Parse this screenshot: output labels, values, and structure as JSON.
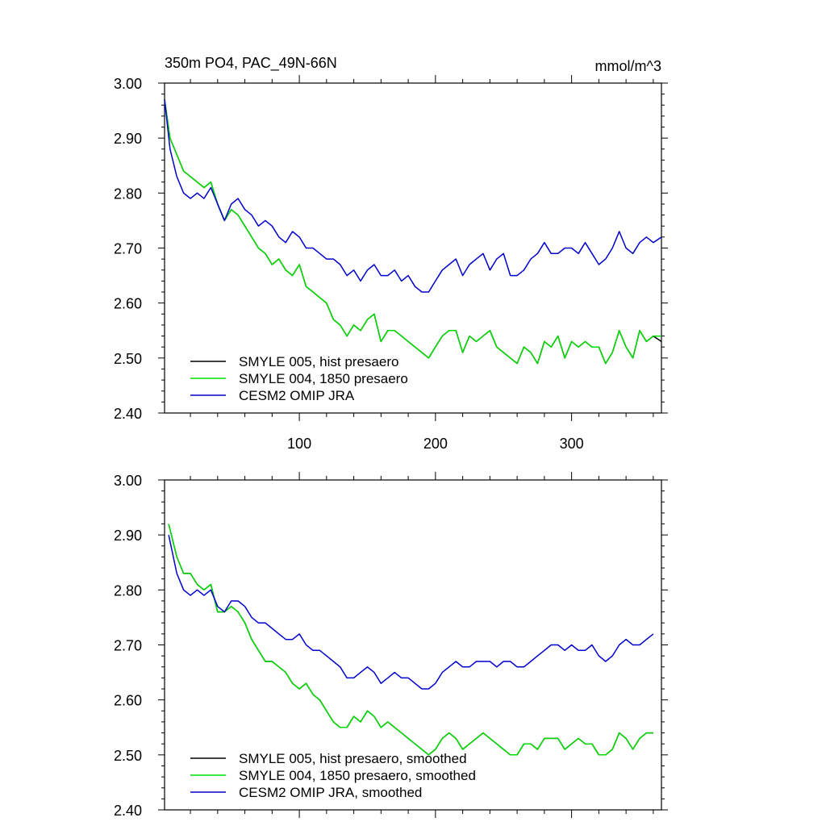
{
  "header": {
    "title": "350m PO4, PAC_49N-66N",
    "units": "mmol/m^3"
  },
  "colors": {
    "smyle005": "#000000",
    "smyle004": "#00dd00",
    "omip": "#0000cc",
    "axis": "#000000"
  },
  "chart_data": [
    {
      "type": "line",
      "title": "350m PO4, PAC_49N-66N",
      "units": "mmol/m^3",
      "xlim": [
        1,
        366
      ],
      "ylim": [
        2.4,
        3.0
      ],
      "x_ticks": [
        100,
        200,
        300
      ],
      "x_tick_labels": [
        "100",
        "200",
        "300"
      ],
      "y_ticks": [
        2.4,
        2.5,
        2.6,
        2.7,
        2.8,
        2.9,
        3.0
      ],
      "y_tick_labels": [
        "2.40",
        "2.50",
        "2.60",
        "2.70",
        "2.80",
        "2.90",
        "3.00"
      ],
      "grid": false,
      "legend_position": "bottom-left",
      "x": [
        1,
        5,
        10,
        15,
        20,
        25,
        30,
        35,
        40,
        45,
        50,
        55,
        60,
        65,
        70,
        75,
        80,
        85,
        90,
        95,
        100,
        105,
        110,
        115,
        120,
        125,
        130,
        135,
        140,
        145,
        150,
        155,
        160,
        165,
        170,
        175,
        180,
        185,
        190,
        195,
        200,
        205,
        210,
        215,
        220,
        225,
        230,
        235,
        240,
        245,
        250,
        255,
        260,
        265,
        270,
        275,
        280,
        285,
        290,
        295,
        300,
        305,
        310,
        315,
        320,
        325,
        330,
        335,
        340,
        345,
        350,
        355,
        360,
        366
      ],
      "series": [
        {
          "name": "SMYLE 005, hist presaero",
          "color": "#000000",
          "values": [
            2.97,
            2.9,
            2.87,
            2.84,
            2.83,
            2.82,
            2.81,
            2.82,
            2.78,
            2.75,
            2.77,
            2.76,
            2.74,
            2.72,
            2.7,
            2.69,
            2.67,
            2.68,
            2.66,
            2.65,
            2.67,
            2.63,
            2.62,
            2.61,
            2.6,
            2.57,
            2.56,
            2.54,
            2.56,
            2.55,
            2.57,
            2.58,
            2.53,
            2.55,
            2.55,
            2.54,
            2.53,
            2.52,
            2.51,
            2.5,
            2.52,
            2.54,
            2.55,
            2.55,
            2.51,
            2.54,
            2.53,
            2.54,
            2.55,
            2.52,
            2.51,
            2.5,
            2.49,
            2.52,
            2.51,
            2.49,
            2.53,
            2.52,
            2.54,
            2.5,
            2.53,
            2.52,
            2.53,
            2.52,
            2.52,
            2.49,
            2.51,
            2.55,
            2.52,
            2.5,
            2.55,
            2.53,
            2.54,
            2.53
          ]
        },
        {
          "name": "SMYLE 004, 1850 presaero",
          "color": "#00dd00",
          "values": [
            2.97,
            2.9,
            2.87,
            2.84,
            2.83,
            2.82,
            2.81,
            2.82,
            2.78,
            2.75,
            2.77,
            2.76,
            2.74,
            2.72,
            2.7,
            2.69,
            2.67,
            2.68,
            2.66,
            2.65,
            2.67,
            2.63,
            2.62,
            2.61,
            2.6,
            2.57,
            2.56,
            2.54,
            2.56,
            2.55,
            2.57,
            2.58,
            2.53,
            2.55,
            2.55,
            2.54,
            2.53,
            2.52,
            2.51,
            2.5,
            2.52,
            2.54,
            2.55,
            2.55,
            2.51,
            2.54,
            2.53,
            2.54,
            2.55,
            2.52,
            2.51,
            2.5,
            2.49,
            2.52,
            2.51,
            2.49,
            2.53,
            2.52,
            2.54,
            2.5,
            2.53,
            2.52,
            2.53,
            2.52,
            2.52,
            2.49,
            2.51,
            2.55,
            2.52,
            2.5,
            2.55,
            2.53,
            2.54,
            2.54
          ]
        },
        {
          "name": "CESM2 OMIP JRA",
          "color": "#0000cc",
          "values": [
            2.97,
            2.88,
            2.83,
            2.8,
            2.79,
            2.8,
            2.79,
            2.81,
            2.78,
            2.75,
            2.78,
            2.79,
            2.77,
            2.76,
            2.74,
            2.75,
            2.74,
            2.72,
            2.71,
            2.73,
            2.72,
            2.7,
            2.7,
            2.69,
            2.68,
            2.68,
            2.67,
            2.65,
            2.66,
            2.64,
            2.66,
            2.67,
            2.65,
            2.65,
            2.66,
            2.64,
            2.65,
            2.63,
            2.62,
            2.62,
            2.64,
            2.66,
            2.67,
            2.68,
            2.65,
            2.67,
            2.68,
            2.69,
            2.66,
            2.68,
            2.69,
            2.65,
            2.65,
            2.66,
            2.68,
            2.69,
            2.71,
            2.69,
            2.69,
            2.7,
            2.7,
            2.69,
            2.71,
            2.69,
            2.67,
            2.68,
            2.7,
            2.73,
            2.7,
            2.69,
            2.71,
            2.72,
            2.71,
            2.72
          ]
        }
      ]
    },
    {
      "type": "line",
      "xlim": [
        1,
        366
      ],
      "ylim": [
        2.4,
        3.0
      ],
      "x_ticks": [
        100,
        200,
        300
      ],
      "x_tick_labels": [],
      "y_ticks": [
        2.4,
        2.5,
        2.6,
        2.7,
        2.8,
        2.9,
        3.0
      ],
      "y_tick_labels": [
        "2.40",
        "2.50",
        "2.60",
        "2.70",
        "2.80",
        "2.90",
        "3.00"
      ],
      "grid": false,
      "legend_position": "bottom-left",
      "x": [
        4,
        10,
        15,
        20,
        25,
        30,
        35,
        40,
        45,
        50,
        55,
        60,
        65,
        70,
        75,
        80,
        85,
        90,
        95,
        100,
        105,
        110,
        115,
        120,
        125,
        130,
        135,
        140,
        145,
        150,
        155,
        160,
        165,
        170,
        175,
        180,
        185,
        190,
        195,
        200,
        205,
        210,
        215,
        220,
        225,
        230,
        235,
        240,
        245,
        250,
        255,
        260,
        265,
        270,
        275,
        280,
        285,
        290,
        295,
        300,
        305,
        310,
        315,
        320,
        325,
        330,
        335,
        340,
        345,
        350,
        355,
        360
      ],
      "series": [
        {
          "name": "SMYLE 005, hist presaero, smoothed",
          "color": "#000000",
          "values": [
            2.92,
            2.86,
            2.83,
            2.83,
            2.81,
            2.8,
            2.81,
            2.76,
            2.76,
            2.77,
            2.76,
            2.74,
            2.71,
            2.69,
            2.67,
            2.67,
            2.66,
            2.65,
            2.63,
            2.62,
            2.63,
            2.61,
            2.6,
            2.58,
            2.56,
            2.55,
            2.55,
            2.57,
            2.56,
            2.58,
            2.57,
            2.55,
            2.56,
            2.55,
            2.54,
            2.53,
            2.52,
            2.51,
            2.5,
            2.51,
            2.53,
            2.54,
            2.53,
            2.51,
            2.52,
            2.53,
            2.54,
            2.53,
            2.52,
            2.51,
            2.5,
            2.5,
            2.52,
            2.52,
            2.51,
            2.53,
            2.53,
            2.53,
            2.51,
            2.52,
            2.53,
            2.52,
            2.52,
            2.5,
            2.5,
            2.51,
            2.54,
            2.53,
            2.51,
            2.53,
            2.54,
            2.54
          ]
        },
        {
          "name": "SMYLE 004, 1850 presaero, smoothed",
          "color": "#00dd00",
          "values": [
            2.92,
            2.86,
            2.83,
            2.83,
            2.81,
            2.8,
            2.81,
            2.76,
            2.76,
            2.77,
            2.76,
            2.74,
            2.71,
            2.69,
            2.67,
            2.67,
            2.66,
            2.65,
            2.63,
            2.62,
            2.63,
            2.61,
            2.6,
            2.58,
            2.56,
            2.55,
            2.55,
            2.57,
            2.56,
            2.58,
            2.57,
            2.55,
            2.56,
            2.55,
            2.54,
            2.53,
            2.52,
            2.51,
            2.5,
            2.51,
            2.53,
            2.54,
            2.53,
            2.51,
            2.52,
            2.53,
            2.54,
            2.53,
            2.52,
            2.51,
            2.5,
            2.5,
            2.52,
            2.52,
            2.51,
            2.53,
            2.53,
            2.53,
            2.51,
            2.52,
            2.53,
            2.52,
            2.52,
            2.5,
            2.5,
            2.51,
            2.54,
            2.53,
            2.51,
            2.53,
            2.54,
            2.54
          ]
        },
        {
          "name": "CESM2 OMIP JRA, smoothed",
          "color": "#0000cc",
          "values": [
            2.9,
            2.83,
            2.8,
            2.79,
            2.8,
            2.79,
            2.8,
            2.77,
            2.76,
            2.78,
            2.78,
            2.77,
            2.75,
            2.74,
            2.74,
            2.73,
            2.72,
            2.71,
            2.71,
            2.72,
            2.7,
            2.69,
            2.69,
            2.68,
            2.67,
            2.66,
            2.64,
            2.64,
            2.65,
            2.66,
            2.65,
            2.63,
            2.64,
            2.65,
            2.64,
            2.64,
            2.63,
            2.62,
            2.62,
            2.63,
            2.65,
            2.66,
            2.67,
            2.66,
            2.66,
            2.67,
            2.67,
            2.67,
            2.66,
            2.67,
            2.67,
            2.66,
            2.66,
            2.67,
            2.68,
            2.69,
            2.7,
            2.7,
            2.69,
            2.7,
            2.69,
            2.69,
            2.7,
            2.68,
            2.67,
            2.68,
            2.7,
            2.71,
            2.7,
            2.7,
            2.71,
            2.72
          ]
        }
      ]
    }
  ]
}
